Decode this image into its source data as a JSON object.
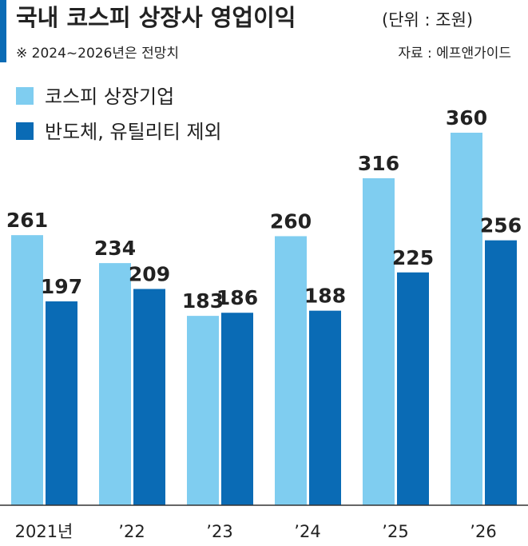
{
  "chart_data": {
    "type": "bar",
    "title": "국내 코스피 상장사 영업이익",
    "unit": "(단위 : 조원)",
    "note": "※ 2024~2026년은 전망치",
    "source": "자료 : 에프앤가이드",
    "categories": [
      "2021년",
      "’22",
      "’23",
      "’24",
      "’25",
      "’26"
    ],
    "series": [
      {
        "name": "코스피 상장기업",
        "color": "#7fcdf0",
        "values": [
          261,
          234,
          183,
          260,
          316,
          360
        ]
      },
      {
        "name": "반도체, 유틸리티 제외",
        "color": "#0a6bb5",
        "values": [
          197,
          209,
          186,
          188,
          225,
          256
        ]
      }
    ],
    "ylim": [
      0,
      360
    ]
  }
}
